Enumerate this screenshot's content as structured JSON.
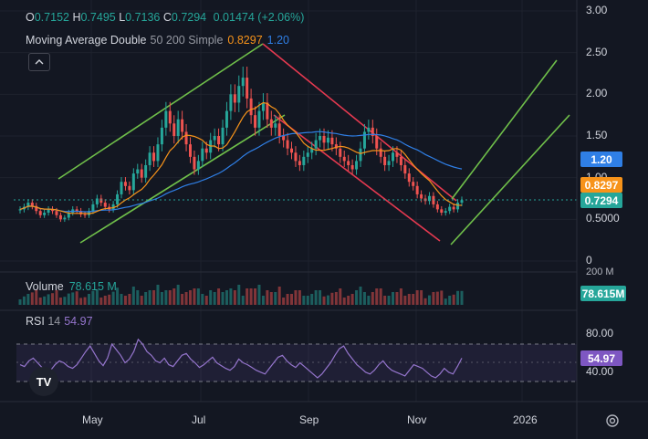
{
  "legend": {
    "open_label": "O",
    "open": "0.7152",
    "high_label": "H",
    "high": "0.7495",
    "low_label": "L",
    "low": "0.7136",
    "close_label": "C",
    "close": "0.7294",
    "change": "0.01474 (+2.06%)"
  },
  "indicator": {
    "name": "Moving Average Double",
    "params": "50 200 Simple",
    "fast_value": "0.8297",
    "slow_value": "1.20"
  },
  "volume": {
    "label": "Volume",
    "value": "78.615 M"
  },
  "rsi": {
    "label": "RSI",
    "period": "14",
    "value": "54.97"
  },
  "badges": {
    "ma_slow": "1.20",
    "ma_fast": "0.8297",
    "price": "0.7294",
    "volume": "78.615M",
    "rsi": "54.97"
  },
  "logo_text": "TV",
  "colors": {
    "up": "#26a69a",
    "down": "#ef5350",
    "ma_fast": "#f7931a",
    "ma_slow": "#2f7fe6",
    "rsi": "#9575cd",
    "trend_up": "#6fbf4a",
    "trend_down": "#e53950"
  },
  "chart_data": {
    "type": "candlestick",
    "price_axis": {
      "ticks": [
        "3.00",
        "2.50",
        "2.00",
        "1.50",
        "1.00",
        "0.5000",
        "0"
      ],
      "tick_values": [
        3.0,
        2.5,
        2.0,
        1.5,
        1.0,
        0.5,
        0
      ]
    },
    "time_axis": {
      "labels": [
        "May",
        "Jul",
        "Sep",
        "Nov",
        "2026"
      ]
    },
    "price_series": [
      0.62,
      0.65,
      0.7,
      0.66,
      0.6,
      0.55,
      0.58,
      0.62,
      0.6,
      0.55,
      0.5,
      0.52,
      0.58,
      0.62,
      0.6,
      0.56,
      0.55,
      0.6,
      0.68,
      0.75,
      0.7,
      0.65,
      0.62,
      0.68,
      0.8,
      0.95,
      0.9,
      0.85,
      1.05,
      1.1,
      1.0,
      1.15,
      1.3,
      1.2,
      1.4,
      1.6,
      1.8,
      1.65,
      1.5,
      1.7,
      1.55,
      1.4,
      1.25,
      1.1,
      1.2,
      1.35,
      1.3,
      1.45,
      1.5,
      1.4,
      1.6,
      1.8,
      2.0,
      1.9,
      2.1,
      2.2,
      1.95,
      1.75,
      1.6,
      1.8,
      1.9,
      1.7,
      1.6,
      1.65,
      1.5,
      1.45,
      1.35,
      1.3,
      1.2,
      1.15,
      1.25,
      1.3,
      1.35,
      1.45,
      1.5,
      1.42,
      1.48,
      1.4,
      1.35,
      1.25,
      1.2,
      1.15,
      1.1,
      1.2,
      1.35,
      1.55,
      1.6,
      1.5,
      1.35,
      1.25,
      1.15,
      1.2,
      1.3,
      1.25,
      1.15,
      1.05,
      0.95,
      0.9,
      0.8,
      0.75,
      0.72,
      0.78,
      0.68,
      0.62,
      0.58,
      0.6,
      0.65,
      0.62,
      0.7,
      0.73
    ],
    "ma_fast_value": 0.8297,
    "ma_slow_value": 1.2,
    "last_price": 0.7294,
    "volume_axis": {
      "ticks": [
        "200 M"
      ]
    },
    "rsi_axis": {
      "ticks": [
        "80.00",
        "40.00"
      ],
      "upper_band": 70,
      "lower_band": 30,
      "midline": 50
    },
    "rsi_series": [
      48,
      46,
      52,
      55,
      50,
      45,
      40,
      42,
      48,
      52,
      50,
      46,
      44,
      48,
      55,
      62,
      68,
      60,
      52,
      47,
      55,
      70,
      64,
      58,
      50,
      54,
      62,
      75,
      70,
      62,
      58,
      52,
      50,
      55,
      48,
      46,
      52,
      58,
      60,
      54,
      50,
      45,
      48,
      52,
      56,
      50,
      47,
      44,
      42,
      46,
      54,
      50,
      48,
      45,
      42,
      40,
      38,
      44,
      50,
      56,
      58,
      52,
      48,
      45,
      50,
      46,
      42,
      38,
      34,
      38,
      44,
      50,
      58,
      65,
      68,
      60,
      54,
      48,
      44,
      40,
      38,
      42,
      48,
      52,
      46,
      42,
      40,
      38,
      36,
      42,
      48,
      46,
      44,
      40,
      36,
      34,
      38,
      44,
      40,
      38,
      46,
      54.97
    ]
  }
}
